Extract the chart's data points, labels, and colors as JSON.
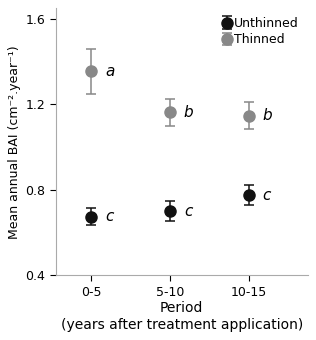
{
  "x_positions": [
    1,
    2,
    3
  ],
  "x_labels": [
    "0-5",
    "5-10",
    "10-15"
  ],
  "thinned_means": [
    1.355,
    1.163,
    1.148
  ],
  "thinned_errors": [
    0.105,
    0.062,
    0.062
  ],
  "unthinned_means": [
    0.675,
    0.7,
    0.775
  ],
  "unthinned_errors": [
    0.038,
    0.048,
    0.048
  ],
  "thinned_color": "#888888",
  "unthinned_color": "#111111",
  "thinned_label_annotations": [
    "a",
    "b",
    "b"
  ],
  "unthinned_label_annotations": [
    "c",
    "c",
    "c"
  ],
  "ylabel": "Mean annual BAI (cm⁻².year⁻¹)",
  "xlabel_line1": "Period",
  "xlabel_line2": "(years after treatment application)",
  "ylim": [
    0.4,
    1.65
  ],
  "yticks": [
    0.4,
    0.8,
    1.2,
    1.6
  ],
  "legend_unthinned": "Unthinned",
  "legend_thinned": "Thinned",
  "marker_size": 8,
  "capsize": 3.5,
  "elinewidth": 1.1,
  "capthick": 1.1,
  "spine_color": "#aaaaaa",
  "annotation_fontsize": 11,
  "tick_fontsize": 9,
  "ylabel_fontsize": 9,
  "xlabel_fontsize": 10,
  "legend_fontsize": 9
}
